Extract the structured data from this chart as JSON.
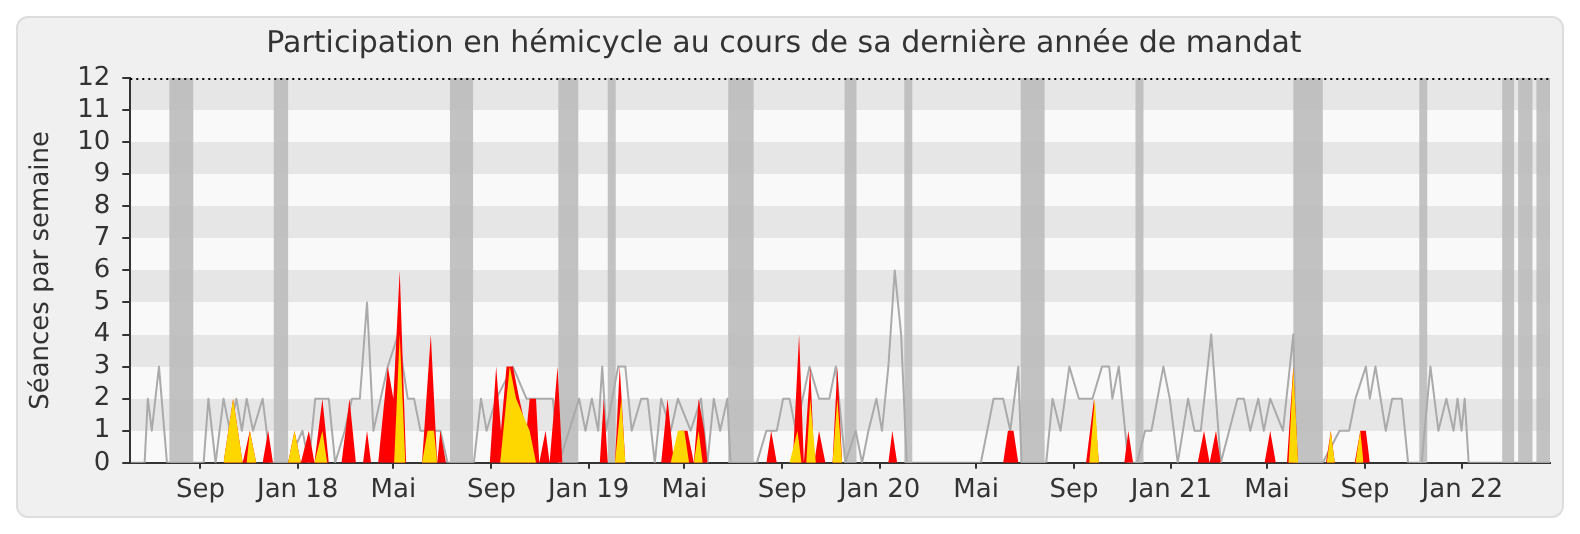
{
  "chart_data": {
    "type": "area",
    "title": "Participation en hémicycle au cours de sa dernière année de mandat",
    "ylabel": "Séances par semaine",
    "xlim": [
      "2017-06-05",
      "2022-04-21"
    ],
    "xticks": [
      {
        "value": "2017-09-01",
        "label": "Sep"
      },
      {
        "value": "2018-01-01",
        "label": "Jan 18"
      },
      {
        "value": "2018-05-01",
        "label": "Mai"
      },
      {
        "value": "2018-09-01",
        "label": "Sep"
      },
      {
        "value": "2019-01-01",
        "label": "Jan 19"
      },
      {
        "value": "2019-05-01",
        "label": "Mai"
      },
      {
        "value": "2019-09-01",
        "label": "Sep"
      },
      {
        "value": "2020-01-01",
        "label": "Jan 20"
      },
      {
        "value": "2020-05-01",
        "label": "Mai"
      },
      {
        "value": "2020-09-01",
        "label": "Sep"
      },
      {
        "value": "2021-01-01",
        "label": "Jan 21"
      },
      {
        "value": "2021-05-01",
        "label": "Mai"
      },
      {
        "value": "2021-09-01",
        "label": "Sep"
      },
      {
        "value": "2022-01-01",
        "label": "Jan 22"
      }
    ],
    "ylim": [
      0,
      12
    ],
    "yticks": [
      0,
      1,
      2,
      3,
      4,
      5,
      6,
      7,
      8,
      9,
      10,
      11,
      12
    ],
    "legend": false,
    "series": [
      {
        "color": "#ffd700",
        "x": [
          "2017-09-30",
          "2017-10-12",
          "2017-10-24",
          "2017-10-29",
          "2017-11-02",
          "2017-11-10",
          "2017-12-20",
          "2017-12-28",
          "2018-01-05",
          "2018-01-22",
          "2018-02-01",
          "2018-02-07",
          "2018-05-02",
          "2018-05-09",
          "2018-05-16",
          "2018-06-06",
          "2018-06-13",
          "2018-06-21",
          "2018-06-25",
          "2018-09-12",
          "2018-09-24",
          "2018-10-02",
          "2018-10-19",
          "2018-10-27",
          "2019-02-03",
          "2019-02-11",
          "2019-02-16",
          "2019-04-14",
          "2019-04-23",
          "2019-05-01",
          "2019-05-07",
          "2019-05-13",
          "2019-05-19",
          "2019-05-24",
          "2019-09-10",
          "2019-09-20",
          "2019-09-25",
          "2019-10-01",
          "2019-10-06",
          "2019-10-13",
          "2019-11-03",
          "2019-11-09",
          "2019-11-15",
          "2020-09-20",
          "2020-09-27",
          "2020-10-02",
          "2021-05-28",
          "2021-06-03",
          "2021-06-09",
          "2021-07-15",
          "2021-07-20",
          "2021-07-25",
          "2021-08-20",
          "2021-08-26",
          "2021-08-30"
        ],
        "values": [
          0,
          2,
          0,
          0,
          1,
          0,
          0,
          1,
          0,
          0,
          1,
          0,
          0,
          4,
          0,
          0,
          1,
          1,
          0,
          0,
          3,
          2,
          1,
          0,
          0,
          2,
          0,
          0,
          1,
          1,
          0,
          0,
          1,
          0,
          0,
          1,
          0,
          0,
          2,
          0,
          0,
          2,
          0,
          0,
          2,
          0,
          0,
          3,
          0,
          0,
          1,
          0,
          0,
          1,
          0
        ]
      },
      {
        "color": "#ff0000",
        "x": [
          "2017-09-30",
          "2017-10-12",
          "2017-10-24",
          "2017-11-02",
          "2017-11-10",
          "2017-11-18",
          "2017-11-25",
          "2017-12-01",
          "2017-12-20",
          "2017-12-28",
          "2018-01-05",
          "2018-01-15",
          "2018-01-22",
          "2018-02-01",
          "2018-02-09",
          "2018-02-25",
          "2018-03-07",
          "2018-03-15",
          "2018-03-24",
          "2018-03-29",
          "2018-04-03",
          "2018-04-12",
          "2018-04-24",
          "2018-05-01",
          "2018-05-09",
          "2018-05-17",
          "2018-06-06",
          "2018-06-17",
          "2018-06-25",
          "2018-06-29",
          "2018-07-06",
          "2018-08-30",
          "2018-09-07",
          "2018-09-13",
          "2018-09-20",
          "2018-09-28",
          "2018-10-06",
          "2018-10-15",
          "2018-10-19",
          "2018-10-27",
          "2018-10-31",
          "2018-11-08",
          "2018-11-13",
          "2018-11-23",
          "2018-11-29",
          "2019-01-15",
          "2019-01-20",
          "2019-01-25",
          "2019-02-03",
          "2019-02-09",
          "2019-02-16",
          "2019-04-02",
          "2019-04-10",
          "2019-04-18",
          "2019-04-27",
          "2019-05-05",
          "2019-05-13",
          "2019-05-19",
          "2019-05-26",
          "2019-05-30",
          "2019-08-12",
          "2019-08-18",
          "2019-08-25",
          "2019-09-14",
          "2019-09-22",
          "2019-09-28",
          "2019-10-06",
          "2019-10-11",
          "2019-10-17",
          "2019-10-25",
          "2019-11-03",
          "2019-11-09",
          "2019-11-15",
          "2020-01-12",
          "2020-01-17",
          "2020-01-23",
          "2020-06-04",
          "2020-06-10",
          "2020-06-17",
          "2020-06-23",
          "2020-09-16",
          "2020-09-26",
          "2020-10-02",
          "2020-11-03",
          "2020-11-08",
          "2020-11-14",
          "2021-02-03",
          "2021-02-11",
          "2021-02-18",
          "2021-02-26",
          "2021-03-04",
          "2021-04-28",
          "2021-05-05",
          "2021-05-12",
          "2021-05-26",
          "2021-06-03",
          "2021-06-09",
          "2021-07-14",
          "2021-07-20",
          "2021-07-25",
          "2021-08-19",
          "2021-08-26",
          "2021-09-02",
          "2021-09-07"
        ],
        "values": [
          0,
          2,
          0,
          1,
          0,
          0,
          1,
          0,
          0,
          1,
          0,
          1,
          0,
          2,
          0,
          0,
          2,
          0,
          0,
          1,
          0,
          0,
          3,
          2,
          6,
          0,
          0,
          4,
          0,
          1,
          0,
          0,
          3,
          1,
          3,
          3,
          2,
          1,
          2,
          2,
          0,
          1,
          0,
          3,
          0,
          0,
          2,
          0,
          0,
          3,
          0,
          0,
          2,
          0,
          1,
          1,
          0,
          2,
          1,
          0,
          0,
          1,
          0,
          0,
          4,
          0,
          3,
          0,
          1,
          0,
          0,
          3,
          0,
          0,
          1,
          0,
          0,
          1,
          1,
          0,
          0,
          2,
          0,
          0,
          1,
          0,
          0,
          1,
          0,
          1,
          0,
          0,
          1,
          0,
          0,
          3,
          0,
          0,
          1,
          0,
          0,
          1,
          1,
          0
        ]
      },
      {
        "type": "line",
        "color": "#aaaaaa",
        "x": [
          "2017-06-06",
          "2017-06-23",
          "2017-06-27",
          "2017-07-02",
          "2017-07-11",
          "2017-07-21",
          "2017-09-05",
          "2017-09-11",
          "2017-09-20",
          "2017-09-30",
          "2017-10-08",
          "2017-10-16",
          "2017-10-23",
          "2017-10-29",
          "2017-11-06",
          "2017-11-18",
          "2017-11-28",
          "2017-12-20",
          "2018-01-07",
          "2018-01-15",
          "2018-01-23",
          "2018-02-01",
          "2018-02-09",
          "2018-02-17",
          "2018-03-01",
          "2018-03-10",
          "2018-03-20",
          "2018-03-29",
          "2018-04-06",
          "2018-04-24",
          "2018-05-07",
          "2018-05-19",
          "2018-05-27",
          "2018-06-04",
          "2018-06-17",
          "2018-06-29",
          "2018-07-08",
          "2018-08-10",
          "2018-08-19",
          "2018-08-26",
          "2018-09-07",
          "2018-09-28",
          "2018-10-15",
          "2018-11-17",
          "2018-11-25",
          "2018-12-20",
          "2018-12-28",
          "2019-01-05",
          "2019-01-13",
          "2019-01-18",
          "2019-01-23",
          "2019-02-07",
          "2019-02-16",
          "2019-02-24",
          "2019-03-08",
          "2019-03-16",
          "2019-03-25",
          "2019-04-02",
          "2019-04-14",
          "2019-04-23",
          "2019-05-09",
          "2019-05-22",
          "2019-05-30",
          "2019-06-07",
          "2019-06-15",
          "2019-06-24",
          "2019-06-28",
          "2019-07-31",
          "2019-08-12",
          "2019-08-25",
          "2019-09-02",
          "2019-09-10",
          "2019-09-18",
          "2019-10-05",
          "2019-10-17",
          "2019-10-30",
          "2019-11-07",
          "2019-11-19",
          "2019-12-02",
          "2019-12-10",
          "2019-12-18",
          "2019-12-28",
          "2020-01-04",
          "2020-01-12",
          "2020-01-20",
          "2020-01-28",
          "2020-02-04",
          "2020-05-07",
          "2020-05-15",
          "2020-05-23",
          "2020-06-04",
          "2020-06-13",
          "2020-06-23",
          "2020-06-27",
          "2020-07-28",
          "2020-08-05",
          "2020-08-15",
          "2020-08-26",
          "2020-09-07",
          "2020-09-24",
          "2020-10-06",
          "2020-10-15",
          "2020-10-19",
          "2020-10-27",
          "2020-11-08",
          "2020-11-19",
          "2020-11-29",
          "2020-12-07",
          "2020-12-22",
          "2020-12-30",
          "2021-01-09",
          "2021-01-22",
          "2021-01-30",
          "2021-02-07",
          "2021-02-20",
          "2021-03-04",
          "2021-03-25",
          "2021-04-02",
          "2021-04-10",
          "2021-04-20",
          "2021-04-27",
          "2021-05-05",
          "2021-05-21",
          "2021-06-03",
          "2021-06-07",
          "2021-07-10",
          "2021-07-31",
          "2021-08-12",
          "2021-08-20",
          "2021-09-02",
          "2021-09-07",
          "2021-09-14",
          "2021-09-27",
          "2021-10-05",
          "2021-10-17",
          "2021-10-25",
          "2021-11-11",
          "2021-11-22",
          "2021-12-02",
          "2021-12-12",
          "2021-12-21",
          "2021-12-26",
          "2021-12-31",
          "2022-01-04",
          "2022-01-09",
          "2022-04-21"
        ],
        "values": [
          0,
          0,
          2,
          1,
          3,
          0,
          0,
          2,
          0,
          2,
          1,
          2,
          1,
          2,
          1,
          2,
          0,
          0,
          1,
          0,
          2,
          null,
          2,
          0,
          1,
          2,
          2,
          5,
          1,
          3,
          4,
          2,
          2,
          1,
          null,
          1,
          0,
          0,
          2,
          1,
          2,
          3,
          2,
          2,
          0,
          2,
          1,
          2,
          1,
          3,
          1,
          3,
          3,
          1,
          2,
          2,
          0,
          2,
          1,
          2,
          1,
          2,
          0,
          2,
          1,
          2,
          0,
          0,
          1,
          1,
          2,
          2,
          1,
          3,
          2,
          2,
          3,
          0,
          1,
          0,
          1,
          2,
          1,
          3,
          6,
          4,
          0,
          0,
          1,
          2,
          2,
          1,
          3,
          0,
          0,
          2,
          1,
          3,
          2,
          2,
          3,
          3,
          2,
          3,
          0,
          0,
          1,
          1,
          3,
          2,
          0,
          2,
          1,
          1,
          4,
          0,
          2,
          2,
          1,
          2,
          1,
          2,
          1,
          4,
          0,
          0,
          1,
          1,
          2,
          3,
          2,
          3,
          1,
          2,
          2,
          0,
          0,
          3,
          1,
          2,
          1,
          2,
          1,
          2,
          0,
          0
        ]
      }
    ],
    "bands": [
      {
        "axis": "x",
        "from": "2017-07-24",
        "to": "2017-08-23",
        "color": "#bbbbbb"
      },
      {
        "axis": "x",
        "from": "2017-12-02",
        "to": "2017-12-20",
        "color": "#bbbbbb"
      },
      {
        "axis": "x",
        "from": "2018-07-11",
        "to": "2018-08-09",
        "color": "#bbbbbb"
      },
      {
        "axis": "x",
        "from": "2018-11-24",
        "to": "2018-12-19",
        "color": "#bbbbbb"
      },
      {
        "axis": "x",
        "from": "2019-01-25",
        "to": "2019-02-04",
        "color": "#bbbbbb"
      },
      {
        "axis": "x",
        "from": "2019-06-25",
        "to": "2019-07-27",
        "color": "#bbbbbb"
      },
      {
        "axis": "x",
        "from": "2019-11-18",
        "to": "2019-12-03",
        "color": "#bbbbbb"
      },
      {
        "axis": "x",
        "from": "2020-02-01",
        "to": "2020-02-11",
        "color": "#bbbbbb"
      },
      {
        "axis": "x",
        "from": "2020-06-26",
        "to": "2020-07-26",
        "color": "#bbbbbb"
      },
      {
        "axis": "x",
        "from": "2020-11-17",
        "to": "2020-11-27",
        "color": "#bbbbbb"
      },
      {
        "axis": "x",
        "from": "2021-06-03",
        "to": "2021-07-10",
        "color": "#bbbbbb"
      },
      {
        "axis": "x",
        "from": "2021-11-08",
        "to": "2021-11-18",
        "color": "#bbbbbb"
      },
      {
        "axis": "x",
        "from": "2022-02-20",
        "to": "2022-03-07",
        "color": "#bbbbbb"
      },
      {
        "axis": "x",
        "from": "2022-03-12",
        "to": "2022-03-30",
        "color": "#bbbbbb"
      },
      {
        "axis": "x",
        "from": "2022-04-04",
        "to": "2022-04-21",
        "color": "#bbbbbb"
      }
    ]
  }
}
